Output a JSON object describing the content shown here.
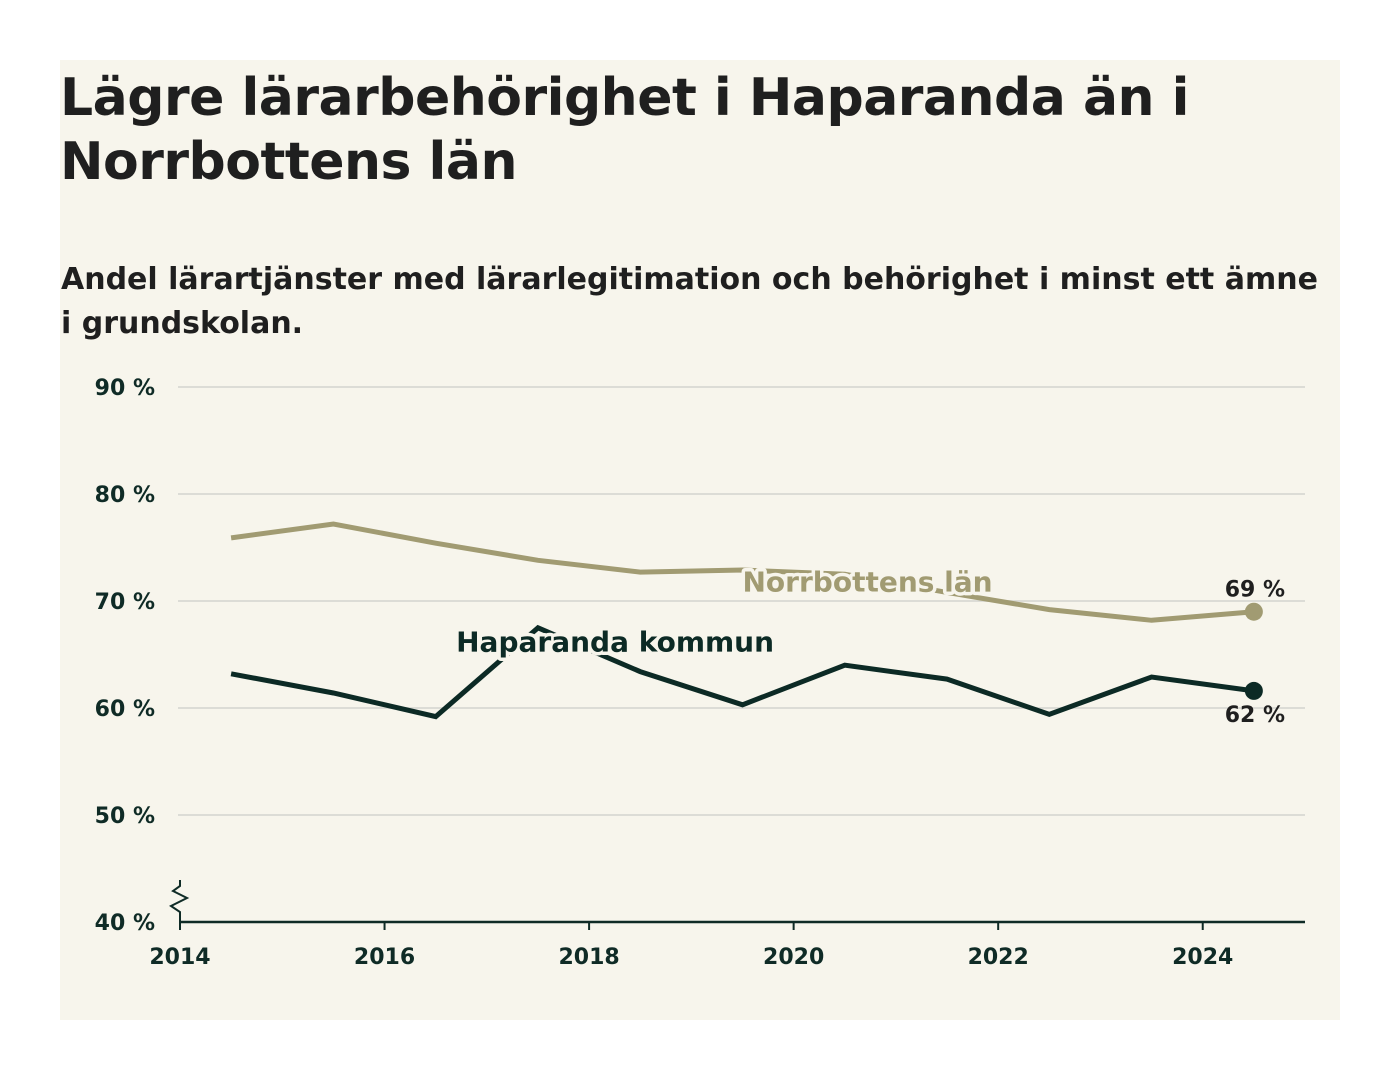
{
  "title": "Lägre lärarbehörighet i Haparanda än i Norrbottens län",
  "subtitle": "Andel lärartjänster med lärarlegitimation och behörighet i minst ett ämne i grundskolan.",
  "colors": {
    "background": "#f7f5ec",
    "norrbotten": "#a19b72",
    "haparanda": "#0c2a25",
    "grid": "#dcdcd6",
    "axis": "#0f2b26"
  },
  "chart_data": {
    "type": "line",
    "title": "Lägre lärarbehörighet i Haparanda än i Norrbottens län",
    "subtitle": "Andel lärartjänster med lärarlegitimation och behörighet i minst ett ämne i grundskolan.",
    "xlim": [
      2014,
      2025
    ],
    "ylim": [
      40,
      90
    ],
    "x_ticks": [
      "2014",
      "2016",
      "2018",
      "2020",
      "2022",
      "2024"
    ],
    "y_ticks": [
      "40 %",
      "50 %",
      "60 %",
      "70 %",
      "80 %",
      "90 %"
    ],
    "grid": true,
    "axis_break": true,
    "series": [
      {
        "name": "Norrbottens län",
        "x": [
          2014.5,
          2015.5,
          2016.5,
          2017.5,
          2018.5,
          2019.5,
          2020.5,
          2021.5,
          2022.5,
          2023.5,
          2024.5
        ],
        "values": [
          75.9,
          77.2,
          75.4,
          73.8,
          72.7,
          72.9,
          72.5,
          70.8,
          69.2,
          68.2,
          69.0
        ],
        "end_label": "69 %"
      },
      {
        "name": "Haparanda kommun",
        "x": [
          2014.5,
          2015.5,
          2016.5,
          2017.5,
          2018.5,
          2019.5,
          2020.5,
          2021.5,
          2022.5,
          2023.5,
          2024.5
        ],
        "values": [
          63.2,
          61.4,
          59.2,
          67.5,
          63.4,
          60.3,
          64.0,
          62.7,
          59.4,
          62.9,
          61.6
        ],
        "end_label": "62 %"
      }
    ]
  }
}
